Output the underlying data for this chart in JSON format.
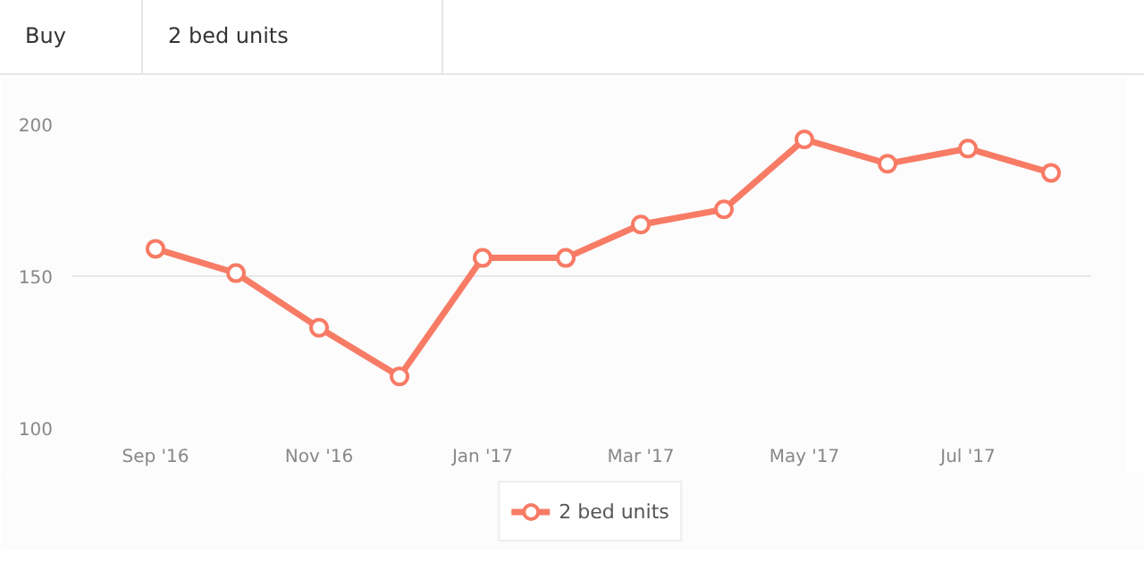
{
  "chart_data": {
    "type": "line",
    "annotations": [
      "Buy",
      "2 bed units"
    ],
    "x": [
      "2016-09",
      "2016-10",
      "2016-11",
      "2016-12",
      "2017-01",
      "2017-02",
      "2017-03",
      "2017-04",
      "2017-05",
      "2017-06",
      "2017-07",
      "2017-08"
    ],
    "series": [
      {
        "name": "2 bed units",
        "color": "#f77b65",
        "values": [
          159,
          151,
          133,
          117,
          156,
          156,
          167,
          172,
          195,
          187,
          192,
          184
        ]
      }
    ],
    "xlim": [
      "2016-08",
      "2017-08-16"
    ],
    "xticks": [
      {
        "value": "2016-09",
        "label": "Sep '16"
      },
      {
        "value": "2016-11",
        "label": "Nov '16"
      },
      {
        "value": "2017-01",
        "label": "Jan '17"
      },
      {
        "value": "2017-03",
        "label": "Mar '17"
      },
      {
        "value": "2017-05",
        "label": "May '17"
      },
      {
        "value": "2017-07",
        "label": "Jul '17"
      }
    ],
    "ylim": [
      100,
      200
    ],
    "yticks": [
      100,
      150,
      200
    ],
    "grid": "y",
    "legend": "bottom",
    "marker": "circle",
    "line_style": "solid"
  }
}
